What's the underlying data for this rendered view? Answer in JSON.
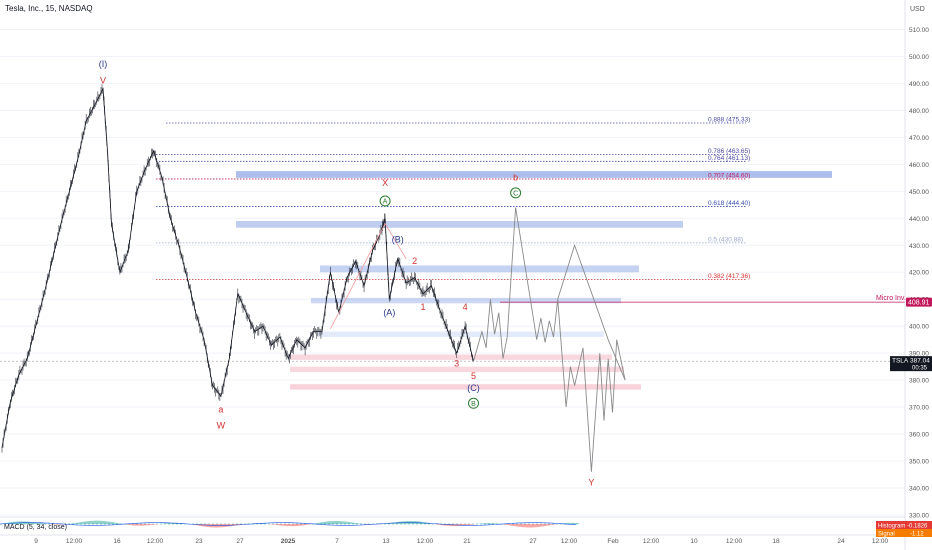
{
  "header": {
    "title": "Tesla, Inc., 15, NASDAQ",
    "currency": "USD"
  },
  "chart_data": {
    "type": "line",
    "ylim": [
      330,
      515
    ],
    "y_ticks": [
      330,
      340,
      350,
      360,
      370,
      380,
      390,
      400,
      410,
      420,
      430,
      440,
      450,
      460,
      470,
      480,
      490,
      500,
      510
    ],
    "x_ticks": [
      "9",
      "12:00",
      "16",
      "12:00",
      "23",
      "27",
      "2025",
      "7",
      "13",
      "12:00",
      "21",
      "27",
      "12:00",
      "Feb",
      "12:00",
      "10",
      "12:00",
      "18",
      "24",
      "12:00"
    ],
    "price_path": [
      {
        "x": "Dec 6",
        "y": 355
      },
      {
        "x": "Dec 7",
        "y": 372
      },
      {
        "x": "Dec 8",
        "y": 382
      },
      {
        "x": "Dec 9",
        "y": 388
      },
      {
        "x": "Dec 10",
        "y": 400
      },
      {
        "x": "Dec 11",
        "y": 412
      },
      {
        "x": "Dec 12",
        "y": 425
      },
      {
        "x": "Dec 13",
        "y": 438
      },
      {
        "x": "Dec 14",
        "y": 450
      },
      {
        "x": "Dec 15",
        "y": 462
      },
      {
        "x": "Dec 16",
        "y": 476
      },
      {
        "x": "Dec 17",
        "y": 482
      },
      {
        "x": "Dec 18",
        "y": 488
      },
      {
        "x": "Dec 18b",
        "y": 466
      },
      {
        "x": "Dec 19",
        "y": 438
      },
      {
        "x": "Dec 20",
        "y": 420
      },
      {
        "x": "Dec 21",
        "y": 428
      },
      {
        "x": "Dec 22",
        "y": 450
      },
      {
        "x": "Dec 23",
        "y": 458
      },
      {
        "x": "Dec 24",
        "y": 465
      },
      {
        "x": "Dec 25",
        "y": 455
      },
      {
        "x": "Dec 26",
        "y": 440
      },
      {
        "x": "Dec 27",
        "y": 430
      },
      {
        "x": "Dec 28",
        "y": 418
      },
      {
        "x": "Dec 29",
        "y": 405
      },
      {
        "x": "Dec 30",
        "y": 395
      },
      {
        "x": "Dec 31",
        "y": 378
      },
      {
        "x": "Jan 1",
        "y": 374
      },
      {
        "x": "Jan 2",
        "y": 388
      },
      {
        "x": "Jan 3",
        "y": 412
      },
      {
        "x": "Jan 4",
        "y": 405
      },
      {
        "x": "Jan 5",
        "y": 398
      },
      {
        "x": "Jan 6",
        "y": 400
      },
      {
        "x": "Jan 7",
        "y": 393
      },
      {
        "x": "Jan 8",
        "y": 396
      },
      {
        "x": "Jan 9",
        "y": 388
      },
      {
        "x": "Jan 10",
        "y": 395
      },
      {
        "x": "Jan 11",
        "y": 392
      },
      {
        "x": "Jan 12",
        "y": 398
      },
      {
        "x": "Jan 13",
        "y": 398
      },
      {
        "x": "Jan 14",
        "y": 420
      },
      {
        "x": "Jan 15",
        "y": 405
      },
      {
        "x": "Jan 16",
        "y": 418
      },
      {
        "x": "Jan 17",
        "y": 424
      },
      {
        "x": "Jan 18",
        "y": 415
      },
      {
        "x": "Jan 19",
        "y": 428
      },
      {
        "x": "Jan 20",
        "y": 435
      },
      {
        "x": "Jan 20b",
        "y": 440
      },
      {
        "x": "Jan 21",
        "y": 410
      },
      {
        "x": "Jan 22",
        "y": 425
      },
      {
        "x": "Jan 23",
        "y": 416
      },
      {
        "x": "Jan 24",
        "y": 418
      },
      {
        "x": "Jan 25",
        "y": 412
      },
      {
        "x": "Jan 26",
        "y": 415
      },
      {
        "x": "Jan 27",
        "y": 406
      },
      {
        "x": "Jan 28",
        "y": 398
      },
      {
        "x": "Jan 29",
        "y": 390
      },
      {
        "x": "Jan 30",
        "y": 400
      },
      {
        "x": "Jan 31",
        "y": 387
      }
    ],
    "projection_path": [
      {
        "x": "Jan 31",
        "y": 387
      },
      {
        "x": "Feb 1",
        "y": 398
      },
      {
        "x": "Feb 1b",
        "y": 392
      },
      {
        "x": "Feb 2",
        "y": 410
      },
      {
        "x": "Feb 2b",
        "y": 397
      },
      {
        "x": "Feb 3",
        "y": 405
      },
      {
        "x": "Feb 3b",
        "y": 388
      },
      {
        "x": "Feb 4",
        "y": 396
      },
      {
        "x": "Feb 5",
        "y": 444
      },
      {
        "x": "Feb 7",
        "y": 405
      },
      {
        "x": "Feb 7b",
        "y": 395
      },
      {
        "x": "Feb 8",
        "y": 403
      },
      {
        "x": "Feb 8b",
        "y": 394
      },
      {
        "x": "Feb 9",
        "y": 402
      },
      {
        "x": "Feb 9b",
        "y": 396
      },
      {
        "x": "Feb 10",
        "y": 410
      },
      {
        "x": "Feb 11",
        "y": 370
      },
      {
        "x": "Feb 11b",
        "y": 385
      },
      {
        "x": "Feb 12",
        "y": 378
      },
      {
        "x": "Feb 13",
        "y": 392
      },
      {
        "x": "Feb 14",
        "y": 346
      },
      {
        "x": "Feb 15",
        "y": 390
      },
      {
        "x": "Feb 15b",
        "y": 365
      },
      {
        "x": "Feb 16",
        "y": 388
      },
      {
        "x": "Feb 16b",
        "y": 368
      },
      {
        "x": "Feb 17",
        "y": 395
      },
      {
        "x": "Feb 18",
        "y": 380
      }
    ],
    "projection_upper": [
      {
        "x": "Feb 10",
        "y": 410
      },
      {
        "x": "Feb 12",
        "y": 430
      },
      {
        "x": "Feb 16",
        "y": 395
      },
      {
        "x": "Feb 18",
        "y": 380
      }
    ],
    "fib_levels": [
      {
        "ratio": "0.888",
        "value": 475.33,
        "label": "0.888 (475.33)",
        "color": "#4a4aa8",
        "style": "dotted"
      },
      {
        "ratio": "0.786",
        "value": 463.65,
        "label": "0.786 (463.65)",
        "color": "#4a4aa8",
        "style": "dotted"
      },
      {
        "ratio": "0.764",
        "value": 461.13,
        "label": "0.764 (461.13)",
        "color": "#4a4aa8",
        "style": "dotted"
      },
      {
        "ratio": "0.707",
        "value": 454.6,
        "label": "0.707 (454.60)",
        "color": "#c2185b",
        "style": "dotted"
      },
      {
        "ratio": "0.618",
        "value": 444.4,
        "label": "0.618 (444.40)",
        "color": "#3a4fb0",
        "style": "dotted"
      },
      {
        "ratio": "0.5",
        "value": 430.88,
        "label": "0.5 (430.88)",
        "color": "#9aa6cf",
        "style": "dotted"
      },
      {
        "ratio": "0.382",
        "value": 417.36,
        "label": "0.382 (417.36)",
        "color": "#d32f2f",
        "style": "dotted"
      }
    ],
    "zones": [
      {
        "y_low": 455,
        "y_high": 457.5,
        "color": "#7f9be0",
        "opacity": 0.65
      },
      {
        "y_low": 436.5,
        "y_high": 439,
        "color": "#7f9be0",
        "opacity": 0.5
      },
      {
        "y_low": 420,
        "y_high": 422.5,
        "color": "#7f9be0",
        "opacity": 0.45
      },
      {
        "y_low": 408.5,
        "y_high": 410.5,
        "color": "#7f9be0",
        "opacity": 0.4
      },
      {
        "y_low": 396,
        "y_high": 398,
        "color": "#aec3ef",
        "opacity": 0.35
      },
      {
        "y_low": 387.5,
        "y_high": 389.5,
        "color": "#f2a6b6",
        "opacity": 0.45
      },
      {
        "y_low": 383,
        "y_high": 385,
        "color": "#f2a6b6",
        "opacity": 0.45
      },
      {
        "y_low": 376.5,
        "y_high": 378.5,
        "color": "#f2a6b6",
        "opacity": 0.5
      }
    ],
    "micro_inv": {
      "label": "Micro Inv.",
      "value": "408.91",
      "y": 408.91,
      "color": "#c2185b"
    },
    "last_price": {
      "ticker": "TSLA",
      "value": "387.04",
      "time": "00:35",
      "y": 387.04
    },
    "wave_labels": [
      {
        "text": "(I)",
        "x": "Dec 18",
        "y": 496,
        "color": "#2b3a8c",
        "circled": false
      },
      {
        "text": "V",
        "x": "Dec 18",
        "y": 490,
        "color": "#d32f2f",
        "circled": false
      },
      {
        "text": "a",
        "x": "Jan 1",
        "y": 368,
        "color": "#d32f2f",
        "circled": false
      },
      {
        "text": "W",
        "x": "Jan 1",
        "y": 362,
        "color": "#d32f2f",
        "circled": false
      },
      {
        "text": "X",
        "x": "Jan 20b",
        "y": 452,
        "color": "#d32f2f",
        "circled": false
      },
      {
        "text": "A",
        "x": "Jan 20b",
        "y": 445.5,
        "color": "#2e7d32",
        "circled": true
      },
      {
        "text": "(B)",
        "x": "Jan 22",
        "y": 431,
        "color": "#2b3a8c",
        "circled": false
      },
      {
        "text": "2",
        "x": "Jan 24",
        "y": 423,
        "color": "#d32f2f",
        "circled": false
      },
      {
        "text": "(A)",
        "x": "Jan 21",
        "y": 404,
        "color": "#2b3a8c",
        "circled": false
      },
      {
        "text": "1",
        "x": "Jan 25",
        "y": 406,
        "color": "#d32f2f",
        "circled": false
      },
      {
        "text": "4",
        "x": "Jan 30",
        "y": 406,
        "color": "#d32f2f",
        "circled": false
      },
      {
        "text": "3",
        "x": "Jan 29",
        "y": 385,
        "color": "#d32f2f",
        "circled": false
      },
      {
        "text": "5",
        "x": "Jan 31",
        "y": 380.5,
        "color": "#d32f2f",
        "circled": false
      },
      {
        "text": "(C)",
        "x": "Jan 31",
        "y": 376,
        "color": "#2b3a8c",
        "circled": false
      },
      {
        "text": "B",
        "x": "Jan 31",
        "y": 370.5,
        "color": "#2e7d32",
        "circled": true
      },
      {
        "text": "b",
        "x": "Feb 5",
        "y": 454,
        "color": "#d32f2f",
        "circled": false
      },
      {
        "text": "C",
        "x": "Feb 5",
        "y": 448.5,
        "color": "#2e7d32",
        "circled": true
      },
      {
        "text": "Y",
        "x": "Feb 14",
        "y": 341,
        "color": "#d32f2f",
        "circled": false
      }
    ],
    "indicator": {
      "title": "MACD (5, 34, close)",
      "histogram_label": "Histogram",
      "histogram_value": "-0.1826",
      "signal_label": "Signal",
      "signal_value": "-1.12"
    },
    "colors": {
      "up": "#131722",
      "price": "#131722",
      "projection": "#8a8a8a",
      "grid": "#f0f3fa",
      "axis_text": "#555555"
    }
  }
}
